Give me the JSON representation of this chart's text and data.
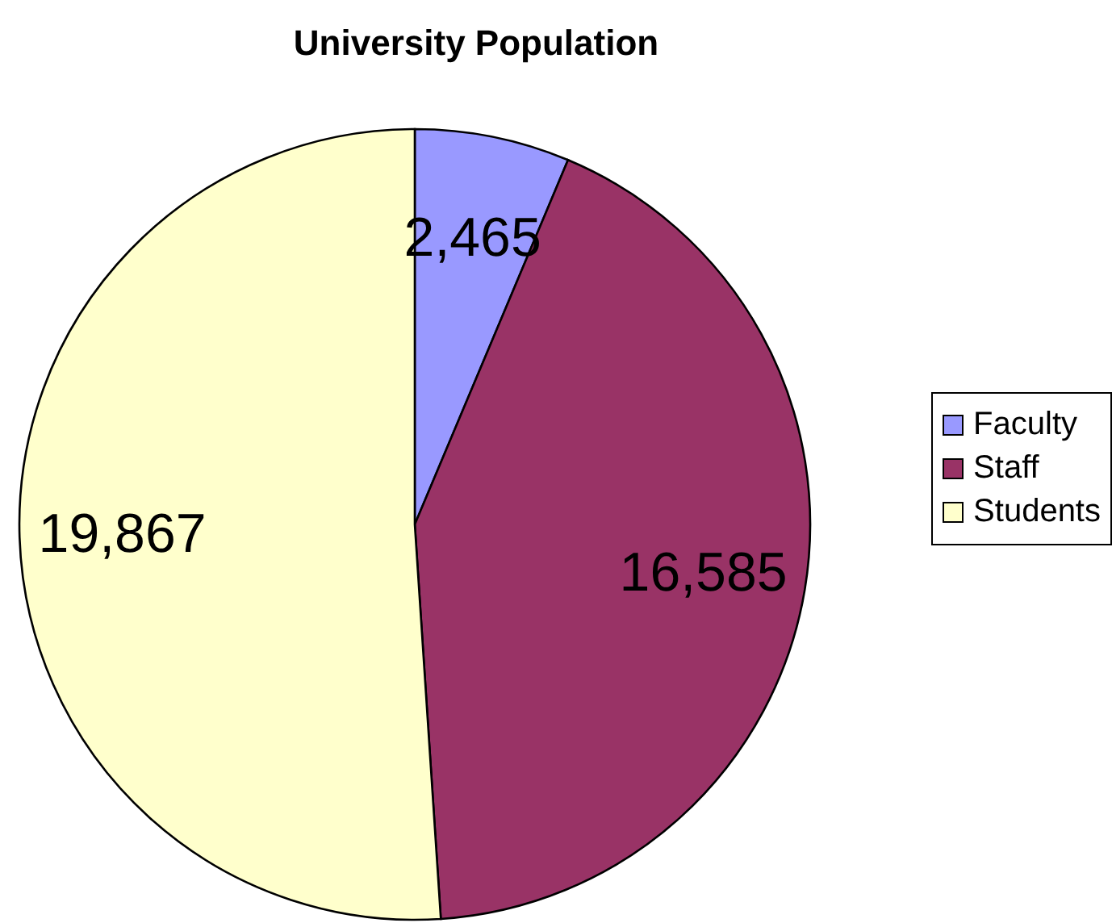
{
  "chart_data": {
    "type": "pie",
    "title": "University Population",
    "categories": [
      "Faculty",
      "Staff",
      "Students"
    ],
    "values": [
      2465,
      16585,
      19867
    ],
    "value_labels": [
      "2,465",
      "16,585",
      "19,867"
    ],
    "colors": [
      "#9999ff",
      "#993366",
      "#ffffcc"
    ],
    "legend": "right"
  }
}
